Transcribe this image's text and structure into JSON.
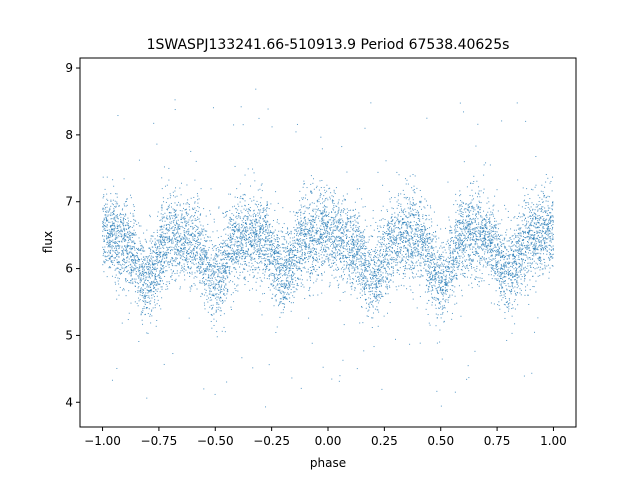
{
  "chart_data": {
    "type": "scatter",
    "title": "1SWASPJ133241.66-510913.9 Period 67538.40625s",
    "xlabel": "phase",
    "ylabel": "flux",
    "xlim": [
      -1.1,
      1.1
    ],
    "ylim": [
      3.63,
      9.15
    ],
    "xticks": [
      -1.0,
      -0.75,
      -0.5,
      -0.25,
      0.0,
      0.25,
      0.5,
      0.75,
      1.0
    ],
    "xtick_labels": [
      "−1.00",
      "−0.75",
      "−0.50",
      "−0.25",
      "0.00",
      "0.25",
      "0.50",
      "0.75",
      "1.00"
    ],
    "yticks": [
      4,
      5,
      6,
      7,
      8,
      9
    ],
    "ytick_labels": [
      "4",
      "5",
      "6",
      "7",
      "8",
      "9"
    ],
    "grid": false,
    "legend": "none",
    "marker_color": "#1f77b4",
    "trend": {
      "x": [
        -1.0,
        -0.9,
        -0.8,
        -0.7,
        -0.6,
        -0.5,
        -0.4,
        -0.3,
        -0.2,
        -0.1,
        0.0,
        0.1,
        0.2,
        0.3,
        0.4,
        0.5,
        0.6,
        0.7,
        0.8,
        0.9,
        1.0
      ],
      "y": [
        6.6,
        6.35,
        5.85,
        6.45,
        6.45,
        5.8,
        6.45,
        6.5,
        5.95,
        6.45,
        6.6,
        6.35,
        5.85,
        6.45,
        6.45,
        5.8,
        6.45,
        6.5,
        5.95,
        6.45,
        6.6
      ],
      "scatter_sd": 0.32
    }
  }
}
